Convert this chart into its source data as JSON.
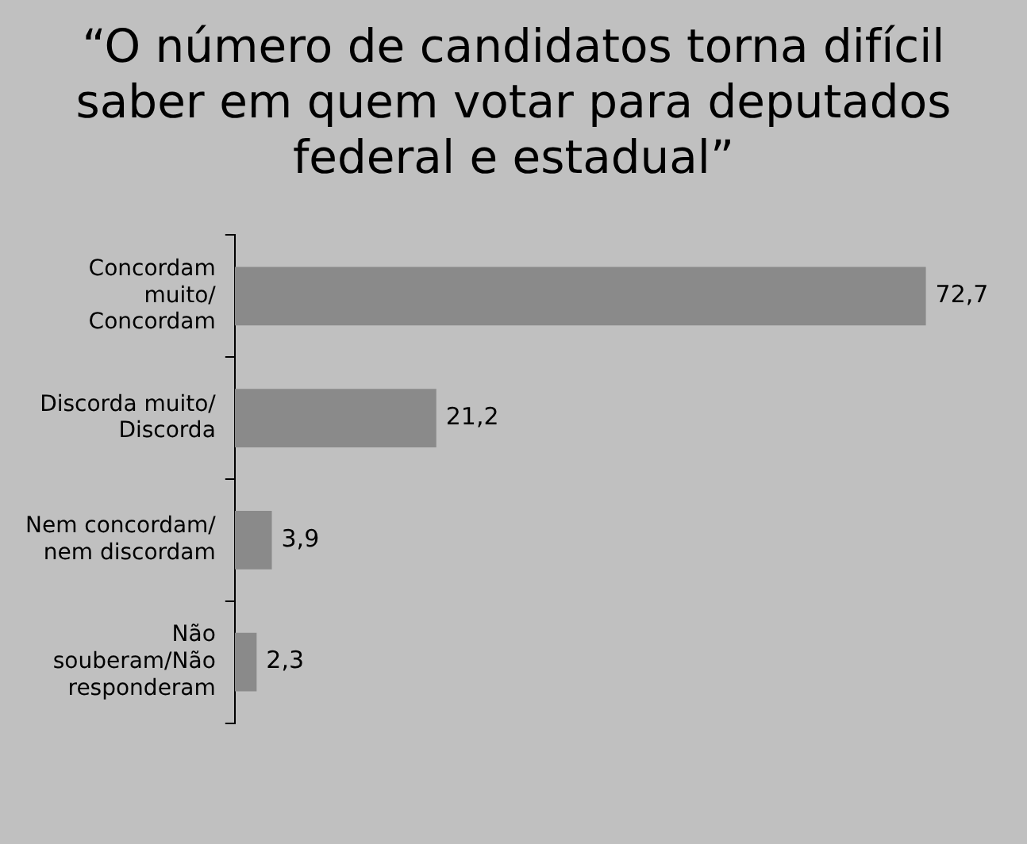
{
  "chart_data": {
    "type": "bar",
    "orientation": "horizontal",
    "title": "“O número de candidatos torna difícil saber em quem votar para deputados federal e estadual”",
    "categories": [
      "Concordam muito/ Concordam",
      "Discorda muito/ Discorda",
      "Nem concordam/ nem discordam",
      "Não souberam/Não responderam"
    ],
    "values": [
      72.7,
      21.2,
      3.9,
      2.3
    ],
    "value_labels": [
      "72,7",
      "21,2",
      "3,9",
      "2,3"
    ],
    "color": "#8a8a8a",
    "legend": false,
    "grid": false
  }
}
